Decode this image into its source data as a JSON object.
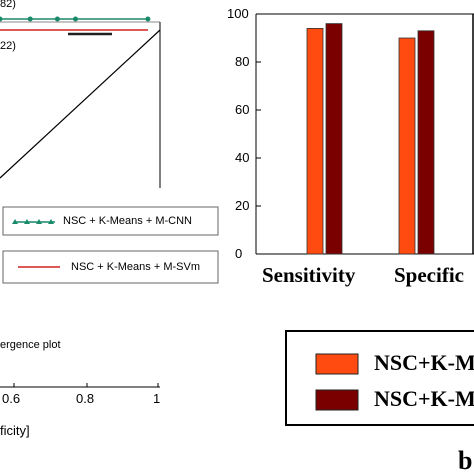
{
  "left_chart": {
    "auc_top": "82)",
    "auc_bottom": "22)",
    "legend": [
      {
        "label": "NSC + K-Means +  M-CNN",
        "color": "#1a8a6a"
      },
      {
        "label": "NSC + K-Means + M-SVm",
        "color": "#d42020"
      }
    ],
    "caption": "ergence plot",
    "xtick_labels": [
      "0.6",
      "0.8",
      "1"
    ],
    "xlabel": "ficity]"
  },
  "chart_data": [
    {
      "type": "line",
      "series": [
        {
          "name": "NSC + K-Means +  M-CNN",
          "x": [
            0.47,
            0.57,
            0.66,
            0.72,
            0.96
          ],
          "y": [
            1.0,
            1.0,
            1.0,
            1.0,
            1.0
          ]
        },
        {
          "name": "NSC + K-Means + M-SVm",
          "x": [
            0.47,
            0.96
          ],
          "y": [
            0.98,
            0.98
          ]
        }
      ],
      "xlabel": "ficity]",
      "x_ticks": [
        "0.6",
        "0.8",
        "1"
      ]
    },
    {
      "type": "bar",
      "categories": [
        "Sensitivity",
        "Specific"
      ],
      "series": [
        {
          "name": "NSC+K-M",
          "values": [
            94,
            90
          ],
          "color": "#ff4a10"
        },
        {
          "name": "NSC+K-M",
          "values": [
            96,
            93
          ],
          "color": "#7a0000"
        }
      ],
      "ylim": [
        0,
        100
      ],
      "y_ticks": [
        "0",
        "20",
        "40",
        "60",
        "80",
        "100"
      ],
      "legend": [
        "NSC+K-M",
        "NSC+K-M"
      ]
    }
  ],
  "bottom_letter": "b"
}
